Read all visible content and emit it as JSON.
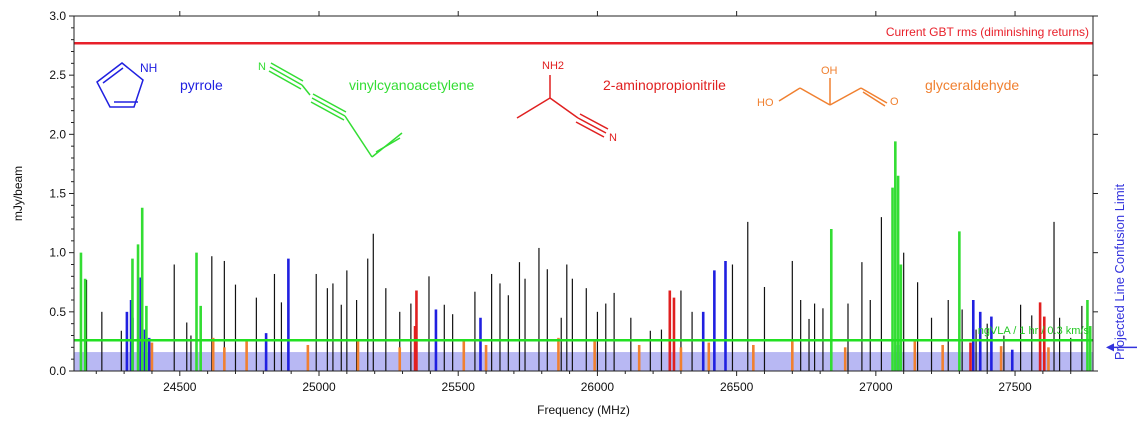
{
  "chart_data": {
    "type": "line",
    "xlabel": "Frequency (MHz)",
    "ylabel": "mJy/beam",
    "xlim": [
      24120,
      27780
    ],
    "ylim": [
      0,
      3.0
    ],
    "x_ticks": [
      "24500",
      "25000",
      "25500",
      "26000",
      "26500",
      "27000",
      "27500"
    ],
    "x_tick_values": [
      24500,
      25000,
      25500,
      26000,
      26500,
      27000,
      27500
    ],
    "y_ticks": [
      "0.0",
      "0.5",
      "1.0",
      "1.5",
      "2.0",
      "2.5",
      "3.0"
    ],
    "y_tick_values": [
      0,
      0.5,
      1.0,
      1.5,
      2.0,
      2.5,
      3.0
    ],
    "grid": false,
    "reference_lines": [
      {
        "label": "Current GBT rms (diminishing returns)",
        "y": 2.77,
        "color": "#e8202a"
      },
      {
        "label": "ngVLA / 1 hr / 0.3 km/s",
        "y": 0.26,
        "color": "#22e022"
      }
    ],
    "confusion_band": {
      "label": "Projected Line Confusion Limit",
      "ymax": 0.16,
      "color": "#3333dd",
      "arrow_y": 0.09
    },
    "molecules": [
      {
        "name": "pyrrole",
        "color": "#2020e0"
      },
      {
        "name": "vinylcyanoacetylene",
        "color": "#33dd33"
      },
      {
        "name": "2-aminopropionitrile",
        "color": "#e02020"
      },
      {
        "name": "glyceraldehyde",
        "color": "#f08030"
      }
    ],
    "structure_atoms": {
      "pyrrole_nh": "NH",
      "vca_n": "N",
      "amino_nh2": "NH2",
      "amino_n": "N",
      "gly_oh1": "HO",
      "gly_oh2": "OH",
      "gly_o": "O"
    },
    "series": [
      {
        "name": "pyrrole",
        "color": "#2020e0",
        "lines": [
          [
            24310,
            0.5
          ],
          [
            24325,
            0.6
          ],
          [
            24330,
            0.45
          ],
          [
            24360,
            0.79
          ],
          [
            24375,
            0.35
          ],
          [
            24390,
            0.28
          ],
          [
            24810,
            0.32
          ],
          [
            24890,
            0.95
          ],
          [
            25420,
            0.52
          ],
          [
            25580,
            0.45
          ],
          [
            26380,
            0.5
          ],
          [
            26420,
            0.85
          ],
          [
            26460,
            0.93
          ],
          [
            27080,
            0.22
          ],
          [
            27350,
            0.6
          ],
          [
            27375,
            0.5
          ],
          [
            27415,
            0.46
          ],
          [
            27490,
            0.18
          ]
        ]
      },
      {
        "name": "vinylcyanoacetylene",
        "color": "#33dd33",
        "lines": [
          [
            24145,
            1.0
          ],
          [
            24160,
            0.78
          ],
          [
            24330,
            0.95
          ],
          [
            24350,
            1.07
          ],
          [
            24365,
            1.38
          ],
          [
            24380,
            0.55
          ],
          [
            24560,
            1.0
          ],
          [
            24575,
            0.55
          ],
          [
            26840,
            1.2
          ],
          [
            27060,
            1.55
          ],
          [
            27070,
            1.94
          ],
          [
            27080,
            1.65
          ],
          [
            27090,
            0.9
          ],
          [
            27300,
            1.18
          ],
          [
            27760,
            0.6
          ],
          [
            27770,
            0.38
          ]
        ]
      },
      {
        "name": "2-aminopropionitrile",
        "color": "#e02020",
        "lines": [
          [
            25350,
            0.68
          ],
          [
            25345,
            0.38
          ],
          [
            26260,
            0.68
          ],
          [
            26275,
            0.62
          ],
          [
            27590,
            0.58
          ],
          [
            27605,
            0.46
          ],
          [
            27340,
            0.24
          ]
        ]
      },
      {
        "name": "glyceraldehyde",
        "color": "#f08030",
        "lines": [
          [
            24400,
            0.24
          ],
          [
            24620,
            0.28
          ],
          [
            24660,
            0.2
          ],
          [
            24740,
            0.26
          ],
          [
            24960,
            0.22
          ],
          [
            25140,
            0.27
          ],
          [
            25290,
            0.2
          ],
          [
            25520,
            0.25
          ],
          [
            25600,
            0.22
          ],
          [
            25860,
            0.28
          ],
          [
            25990,
            0.25
          ],
          [
            26150,
            0.22
          ],
          [
            26300,
            0.2
          ],
          [
            26400,
            0.24
          ],
          [
            26560,
            0.22
          ],
          [
            26700,
            0.25
          ],
          [
            26890,
            0.2
          ],
          [
            27140,
            0.26
          ],
          [
            27240,
            0.22
          ],
          [
            27450,
            0.21
          ],
          [
            27620,
            0.2
          ]
        ]
      },
      {
        "name": "other",
        "color": "#111111",
        "lines": [
          [
            24165,
            0.77
          ],
          [
            24220,
            0.5
          ],
          [
            24290,
            0.34
          ],
          [
            24480,
            0.9
          ],
          [
            24525,
            0.41
          ],
          [
            24540,
            0.3
          ],
          [
            24615,
            0.97
          ],
          [
            24660,
            0.93
          ],
          [
            24700,
            0.73
          ],
          [
            24775,
            0.62
          ],
          [
            24840,
            0.82
          ],
          [
            24865,
            0.58
          ],
          [
            24990,
            0.82
          ],
          [
            25030,
            0.7
          ],
          [
            25050,
            0.74
          ],
          [
            25080,
            0.56
          ],
          [
            25100,
            0.85
          ],
          [
            25135,
            0.6
          ],
          [
            25175,
            0.95
          ],
          [
            25195,
            1.16
          ],
          [
            25240,
            0.7
          ],
          [
            25290,
            0.5
          ],
          [
            25330,
            0.57
          ],
          [
            25395,
            0.8
          ],
          [
            25450,
            0.56
          ],
          [
            25480,
            0.48
          ],
          [
            25560,
            0.67
          ],
          [
            25620,
            0.82
          ],
          [
            25650,
            0.74
          ],
          [
            25680,
            0.64
          ],
          [
            25720,
            0.92
          ],
          [
            25740,
            0.78
          ],
          [
            25790,
            1.04
          ],
          [
            25820,
            0.86
          ],
          [
            25870,
            0.45
          ],
          [
            25890,
            0.9
          ],
          [
            25910,
            0.78
          ],
          [
            25960,
            0.7
          ],
          [
            26000,
            0.5
          ],
          [
            26030,
            0.57
          ],
          [
            26060,
            0.66
          ],
          [
            26120,
            0.45
          ],
          [
            26190,
            0.34
          ],
          [
            26230,
            0.35
          ],
          [
            26300,
            0.68
          ],
          [
            26340,
            0.5
          ],
          [
            26485,
            0.9
          ],
          [
            26540,
            1.26
          ],
          [
            26600,
            0.71
          ],
          [
            26700,
            0.93
          ],
          [
            26730,
            0.6
          ],
          [
            26760,
            0.44
          ],
          [
            26780,
            0.57
          ],
          [
            26810,
            0.53
          ],
          [
            26900,
            0.57
          ],
          [
            26950,
            0.92
          ],
          [
            26980,
            0.6
          ],
          [
            27020,
            1.3
          ],
          [
            27100,
            1.0
          ],
          [
            27150,
            0.75
          ],
          [
            27200,
            0.45
          ],
          [
            27260,
            0.6
          ],
          [
            27310,
            0.52
          ],
          [
            27360,
            0.35
          ],
          [
            27400,
            0.4
          ],
          [
            27460,
            0.3
          ],
          [
            27520,
            0.56
          ],
          [
            27560,
            0.47
          ],
          [
            27640,
            1.26
          ],
          [
            27660,
            0.45
          ],
          [
            27700,
            0.28
          ],
          [
            27740,
            0.55
          ]
        ]
      }
    ]
  }
}
